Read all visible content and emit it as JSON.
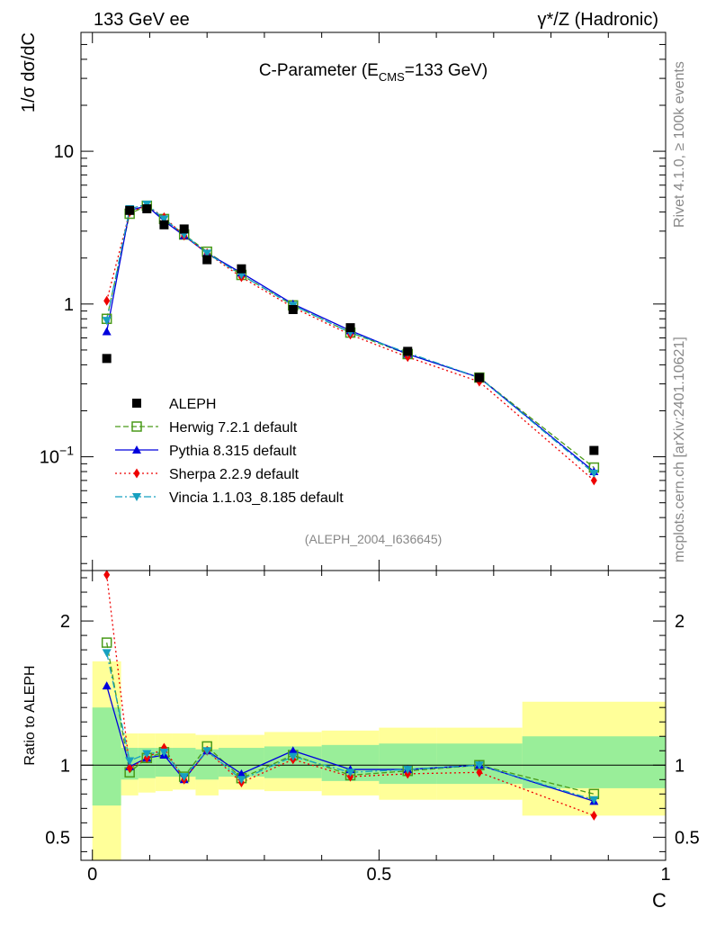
{
  "header": {
    "left": "133 GeV ee",
    "right": "γ*/Z (Hadronic)"
  },
  "side_text": {
    "rivet": "Rivet 4.1.0, ≥ 100k events",
    "mcplots": "mcplots.cern.ch [arXiv:2401.10621]"
  },
  "chart_data": [
    {
      "type": "scatter",
      "panel": "main",
      "title_pre": "C-Parameter (E",
      "title_sub": "CMS",
      "title_post": "=133 GeV)",
      "ylabel": "1/σ  dσ/dC",
      "yscale": "log",
      "ylim": [
        0.018,
        60
      ],
      "xlim": [
        -0.02,
        1.0
      ],
      "y_ticks": [
        {
          "value": 10,
          "label": "10"
        },
        {
          "value": 1,
          "label": "1"
        },
        {
          "value": 0.1,
          "label_base": "10",
          "label_exp": "−1"
        }
      ],
      "watermark": "(ALEPH_2004_I636645)",
      "x": [
        0.025,
        0.065,
        0.095,
        0.125,
        0.16,
        0.2,
        0.26,
        0.35,
        0.45,
        0.55,
        0.675,
        0.875
      ],
      "data": {
        "name": "ALEPH",
        "color": "#000000",
        "values": [
          0.44,
          4.1,
          4.2,
          3.3,
          3.1,
          1.95,
          1.7,
          0.92,
          0.7,
          0.49,
          0.33,
          0.11
        ]
      },
      "series": [
        {
          "name": "Herwig 7.2.1 default",
          "color": "#4a9a1a",
          "dash": "6,3",
          "marker": "open-square",
          "values": [
            0.8,
            3.9,
            4.4,
            3.6,
            2.85,
            2.2,
            1.55,
            0.98,
            0.65,
            0.47,
            0.33,
            0.085
          ]
        },
        {
          "name": "Pythia 8.315 default",
          "color": "#0000dd",
          "dash": "",
          "marker": "triangle-up",
          "values": [
            0.66,
            4.1,
            4.4,
            3.5,
            2.8,
            2.15,
            1.6,
            1.0,
            0.67,
            0.47,
            0.33,
            0.08
          ]
        },
        {
          "name": "Sherpa 2.2.9 default",
          "color": "#ee0000",
          "dash": "2,3",
          "marker": "diamond",
          "values": [
            1.05,
            4.0,
            4.4,
            3.7,
            2.8,
            2.15,
            1.5,
            0.95,
            0.63,
            0.45,
            0.31,
            0.07
          ]
        },
        {
          "name": "Vincia 1.1.03_8.185 default",
          "color": "#16a0c0",
          "dash": "8,3,2,3",
          "marker": "triangle-down",
          "values": [
            0.78,
            4.2,
            4.5,
            3.6,
            2.85,
            2.15,
            1.55,
            0.98,
            0.65,
            0.48,
            0.33,
            0.078
          ]
        }
      ]
    },
    {
      "type": "line",
      "panel": "ratio",
      "ylabel": "Ratio to ALEPH",
      "ylim": [
        0.34,
        2.35
      ],
      "xlim": [
        -0.02,
        1.0
      ],
      "xlabel": "C",
      "x_ticks": [
        {
          "value": 0,
          "label": "0"
        },
        {
          "value": 0.5,
          "label": "0.5"
        },
        {
          "value": 1,
          "label": "1"
        }
      ],
      "y_ticks": [
        {
          "value": 2,
          "label": "2"
        },
        {
          "value": 1,
          "label": "1"
        },
        {
          "value": 0.5,
          "label": "0.5"
        }
      ],
      "bins": [
        {
          "lo": 0.0,
          "hi": 0.05,
          "inner": [
            0.72,
            1.4
          ],
          "outer": [
            0.33,
            1.72
          ]
        },
        {
          "lo": 0.05,
          "hi": 0.08,
          "inner": [
            0.9,
            1.12
          ],
          "outer": [
            0.79,
            1.22
          ]
        },
        {
          "lo": 0.08,
          "hi": 0.11,
          "inner": [
            0.91,
            1.12
          ],
          "outer": [
            0.81,
            1.22
          ]
        },
        {
          "lo": 0.11,
          "hi": 0.14,
          "inner": [
            0.92,
            1.12
          ],
          "outer": [
            0.82,
            1.22
          ]
        },
        {
          "lo": 0.14,
          "hi": 0.18,
          "inner": [
            0.92,
            1.12
          ],
          "outer": [
            0.83,
            1.22
          ]
        },
        {
          "lo": 0.18,
          "hi": 0.22,
          "inner": [
            0.9,
            1.11
          ],
          "outer": [
            0.79,
            1.21
          ]
        },
        {
          "lo": 0.22,
          "hi": 0.3,
          "inner": [
            0.92,
            1.12
          ],
          "outer": [
            0.83,
            1.21
          ]
        },
        {
          "lo": 0.3,
          "hi": 0.4,
          "inner": [
            0.91,
            1.13
          ],
          "outer": [
            0.82,
            1.23
          ]
        },
        {
          "lo": 0.4,
          "hi": 0.5,
          "inner": [
            0.89,
            1.14
          ],
          "outer": [
            0.79,
            1.24
          ]
        },
        {
          "lo": 0.5,
          "hi": 0.6,
          "inner": [
            0.87,
            1.15
          ],
          "outer": [
            0.76,
            1.26
          ]
        },
        {
          "lo": 0.6,
          "hi": 0.75,
          "inner": [
            0.87,
            1.15
          ],
          "outer": [
            0.76,
            1.26
          ]
        },
        {
          "lo": 0.75,
          "hi": 1.0,
          "inner": [
            0.84,
            1.2
          ],
          "outer": [
            0.65,
            1.44
          ]
        }
      ],
      "x": [
        0.025,
        0.065,
        0.095,
        0.125,
        0.16,
        0.2,
        0.26,
        0.35,
        0.45,
        0.55,
        0.675,
        0.875
      ],
      "series": [
        {
          "name": "Herwig 7.2.1 default",
          "values": [
            1.85,
            0.95,
            1.05,
            1.09,
            0.92,
            1.13,
            0.91,
            1.07,
            0.93,
            0.96,
            1.0,
            0.8
          ]
        },
        {
          "name": "Pythia 8.315 default",
          "values": [
            1.55,
            0.99,
            1.05,
            1.07,
            0.9,
            1.1,
            0.94,
            1.1,
            0.97,
            0.97,
            1.0,
            0.75
          ]
        },
        {
          "name": "Sherpa 2.2.9 default",
          "values": [
            2.32,
            0.98,
            1.05,
            1.12,
            0.9,
            1.1,
            0.88,
            1.04,
            0.92,
            0.94,
            0.95,
            0.65
          ]
        },
        {
          "name": "Vincia 1.1.03_8.185 default",
          "values": [
            1.78,
            1.03,
            1.08,
            1.09,
            0.92,
            1.1,
            0.9,
            1.06,
            0.95,
            0.97,
            1.0,
            0.76
          ]
        }
      ]
    }
  ]
}
